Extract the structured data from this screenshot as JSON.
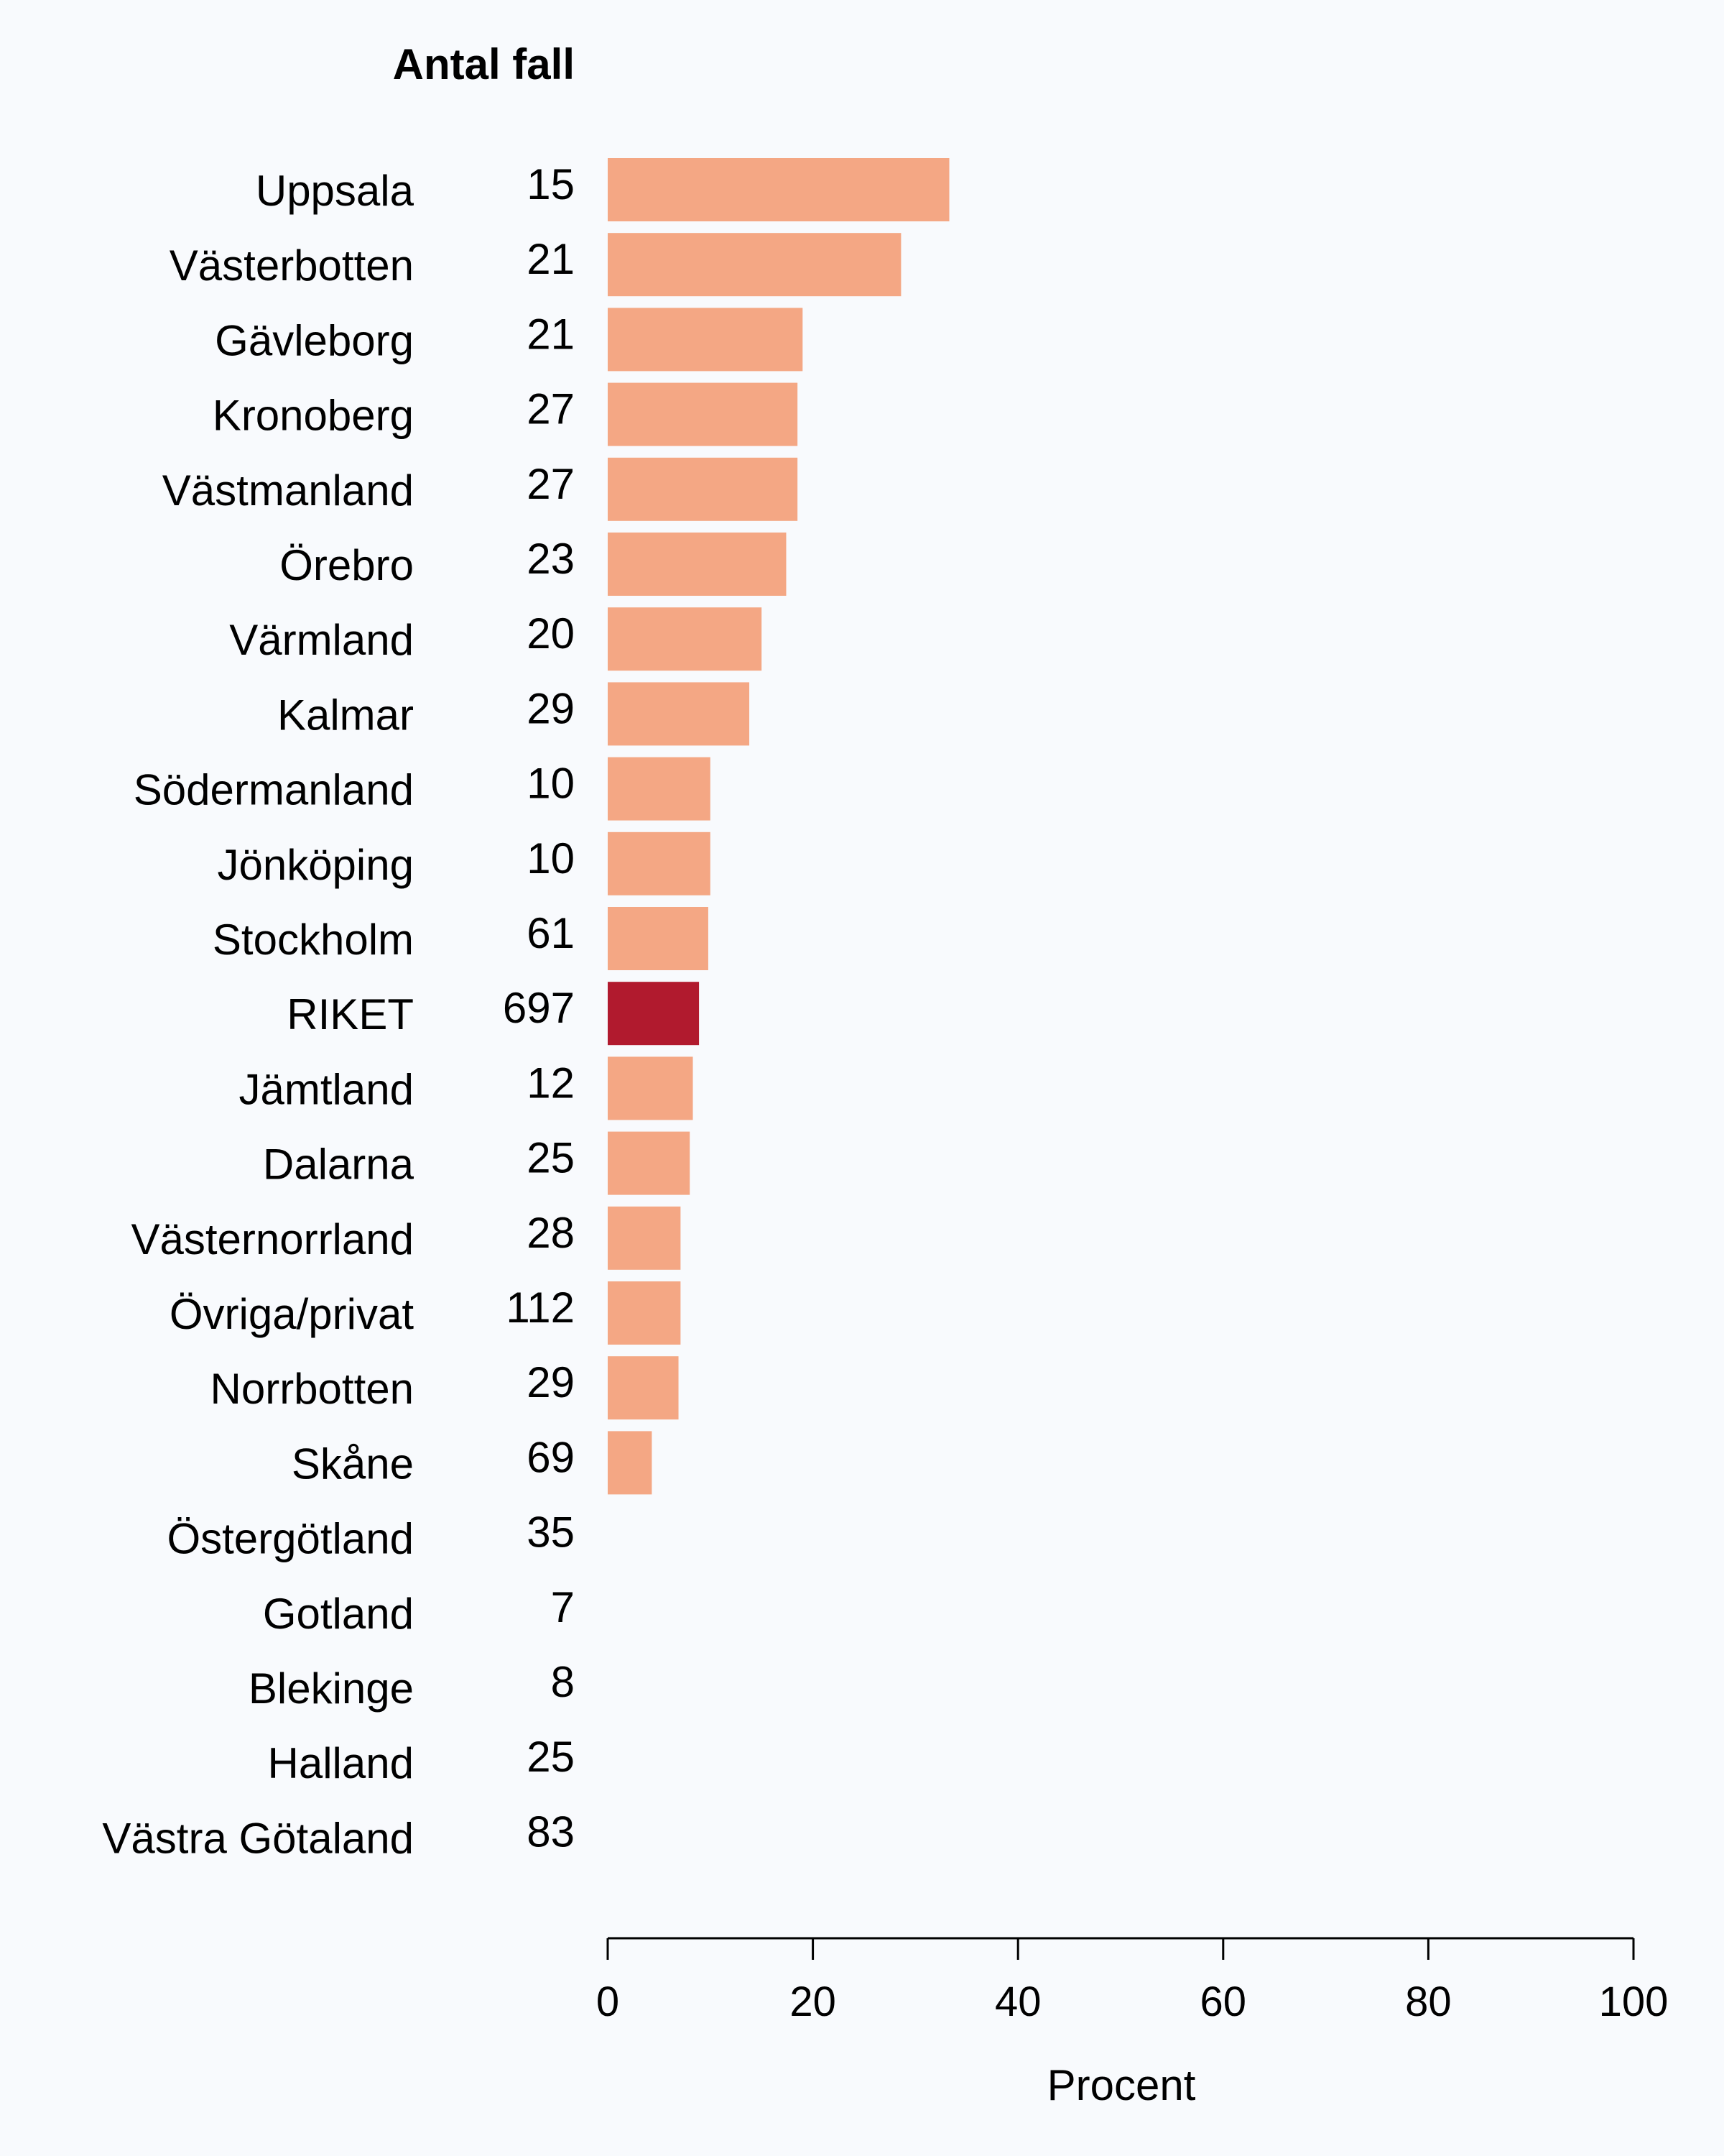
{
  "chart_data": {
    "type": "bar",
    "orientation": "horizontal",
    "count_header": "Antal fall",
    "xlabel": "Procent",
    "xlim": [
      0,
      100
    ],
    "xticks": [
      0,
      20,
      40,
      60,
      80,
      100
    ],
    "colors": {
      "default": "#f4a784",
      "highlight": "#b11a2e"
    },
    "rows": [
      {
        "region": "Uppsala",
        "count": "15",
        "value": 33.3
      },
      {
        "region": "Västerbotten",
        "count": "21",
        "value": 28.6
      },
      {
        "region": "Gävleborg",
        "count": "21",
        "value": 19.0
      },
      {
        "region": "Kronoberg",
        "count": "27",
        "value": 18.5
      },
      {
        "region": "Västmanland",
        "count": "27",
        "value": 18.5
      },
      {
        "region": "Örebro",
        "count": "23",
        "value": 17.4
      },
      {
        "region": "Värmland",
        "count": "20",
        "value": 15.0
      },
      {
        "region": "Kalmar",
        "count": "29",
        "value": 13.8
      },
      {
        "region": "Södermanland",
        "count": "10",
        "value": 10.0
      },
      {
        "region": "Jönköping",
        "count": "10",
        "value": 10.0
      },
      {
        "region": "Stockholm",
        "count": "61",
        "value": 9.8
      },
      {
        "region": "RIKET",
        "count": "697",
        "value": 8.9,
        "highlight": true
      },
      {
        "region": "Jämtland",
        "count": "12",
        "value": 8.3
      },
      {
        "region": "Dalarna",
        "count": "25",
        "value": 8.0
      },
      {
        "region": "Västernorrland",
        "count": "28",
        "value": 7.1
      },
      {
        "region": "Övriga/privat",
        "count": "112",
        "value": 7.1
      },
      {
        "region": "Norrbotten",
        "count": "29",
        "value": 6.9
      },
      {
        "region": "Skåne",
        "count": "69",
        "value": 4.3
      },
      {
        "region": "Östergötland",
        "count": "35",
        "value": 0
      },
      {
        "region": "Gotland",
        "count": "7",
        "value": 0
      },
      {
        "region": "Blekinge",
        "count": "8",
        "value": 0
      },
      {
        "region": "Halland",
        "count": "25",
        "value": 0
      },
      {
        "region": "Västra Götaland",
        "count": "83",
        "value": 0
      }
    ]
  }
}
